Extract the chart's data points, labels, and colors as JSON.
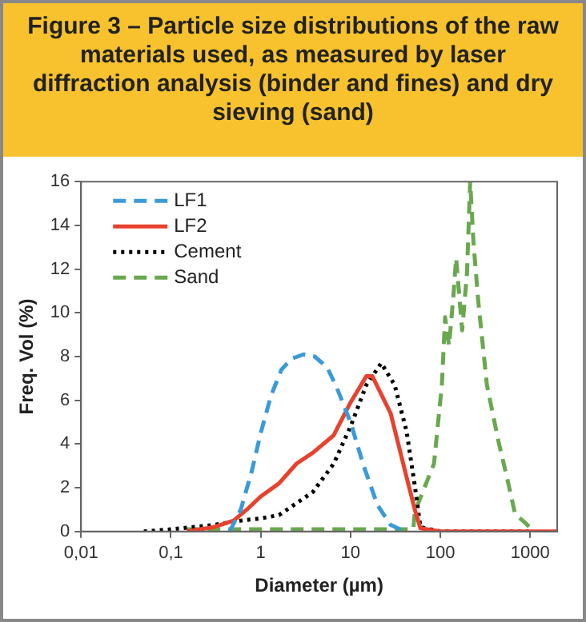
{
  "chart_data": {
    "type": "line",
    "title": "Figure 3 – Particle size distributions of the raw materials used, as measured by laser diffraction analysis (binder and fines) and dry sieving (sand)",
    "xlabel": "Diameter (µm)",
    "ylabel": "Freq. Vol (%)",
    "log": "x",
    "xlim": [
      0.01,
      2000
    ],
    "xticks": [
      {
        "value": 0.01,
        "label": "0,01"
      },
      {
        "value": 0.1,
        "label": "0,1"
      },
      1,
      10,
      100,
      1000
    ],
    "ylim": [
      0,
      16
    ],
    "yticks": [
      0,
      2,
      4,
      6,
      8,
      10,
      12,
      14,
      16
    ],
    "grid": false,
    "legend": "top left",
    "marker": "none",
    "series": [
      {
        "name": "LF1",
        "color": "#3a9ad9",
        "line_style": "dashed",
        "x": [
          0.45,
          0.6,
          0.8,
          1,
          1.3,
          1.7,
          2.2,
          3,
          4,
          5.5,
          7,
          10,
          14,
          20,
          28,
          40
        ],
        "values": [
          0,
          1.0,
          2.8,
          4.5,
          6.2,
          7.4,
          7.9,
          8.1,
          8.0,
          7.5,
          6.6,
          5.0,
          3.0,
          1.2,
          0.3,
          0
        ]
      },
      {
        "name": "LF2",
        "color": "#e8412c",
        "line_style": "solid",
        "x": [
          0.15,
          0.3,
          0.5,
          0.7,
          1,
          1.6,
          2.5,
          3.8,
          6.5,
          10,
          15,
          17.5,
          28,
          42,
          52,
          60,
          100,
          1000,
          2000
        ],
        "values": [
          0,
          0.2,
          0.5,
          1.0,
          1.6,
          2.2,
          3.1,
          3.6,
          4.4,
          5.9,
          7.1,
          7.1,
          5.4,
          2.5,
          1.0,
          0.15,
          0,
          0,
          0
        ]
      },
      {
        "name": "Cement",
        "color": "#000000",
        "line_style": "dotted",
        "x": [
          0.05,
          0.1,
          0.3,
          0.6,
          1,
          1.6,
          3.8,
          6.5,
          10,
          15,
          22,
          31,
          42,
          52,
          60,
          100,
          1000
        ],
        "values": [
          0,
          0.1,
          0.3,
          0.5,
          0.6,
          0.75,
          1.8,
          3.1,
          4.8,
          6.7,
          7.7,
          6.7,
          4.6,
          2.1,
          0.2,
          0,
          0
        ]
      },
      {
        "name": "Sand",
        "color": "#6aa84f",
        "line_style": "dashed",
        "x": [
          0.15,
          1,
          10,
          50,
          52,
          85,
          104,
          113,
          125,
          140,
          150,
          175,
          198,
          215,
          235,
          265,
          330,
          445,
          550,
          680,
          880,
          1100
        ],
        "values": [
          0.1,
          0.1,
          0.1,
          0.1,
          0.9,
          3.1,
          6.7,
          9.8,
          8.5,
          10.8,
          12.5,
          9.2,
          11.8,
          16,
          13.1,
          10.5,
          6.7,
          4.1,
          2.5,
          0.8,
          0.4,
          0
        ]
      }
    ]
  }
}
